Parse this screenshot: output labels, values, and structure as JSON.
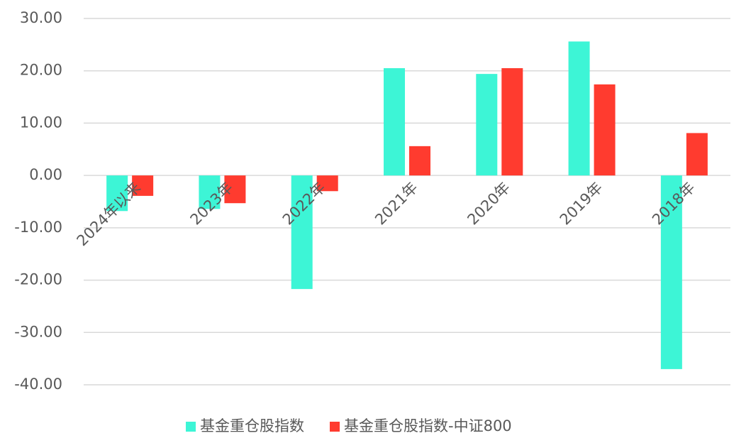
{
  "chart_data": {
    "type": "bar",
    "categories": [
      "2024年以来",
      "2023年",
      "2022年",
      "2021年",
      "2020年",
      "2019年",
      "2018年"
    ],
    "series": [
      {
        "name": "基金重仓股指数",
        "color": "#3df5d6",
        "values": [
          -6.8,
          -6.4,
          -21.7,
          20.5,
          19.4,
          25.6,
          -37.0
        ]
      },
      {
        "name": "基金重仓股指数-中证800",
        "color": "#ff3b2f",
        "values": [
          -3.9,
          -5.3,
          -3.0,
          5.6,
          20.5,
          17.4,
          8.1
        ]
      }
    ],
    "ylim": [
      -40,
      30
    ],
    "yticks": [
      {
        "value": -40,
        "label": "-40.00"
      },
      {
        "value": -30,
        "label": "-30.00"
      },
      {
        "value": -20,
        "label": "-20.00"
      },
      {
        "value": -10,
        "label": "-10.00"
      },
      {
        "value": 0,
        "label": "0.00"
      },
      {
        "value": 10,
        "label": "10.00"
      },
      {
        "value": 20,
        "label": "20.00"
      },
      {
        "value": 30,
        "label": "30.00"
      }
    ],
    "grid": true,
    "legend": "bottom"
  }
}
